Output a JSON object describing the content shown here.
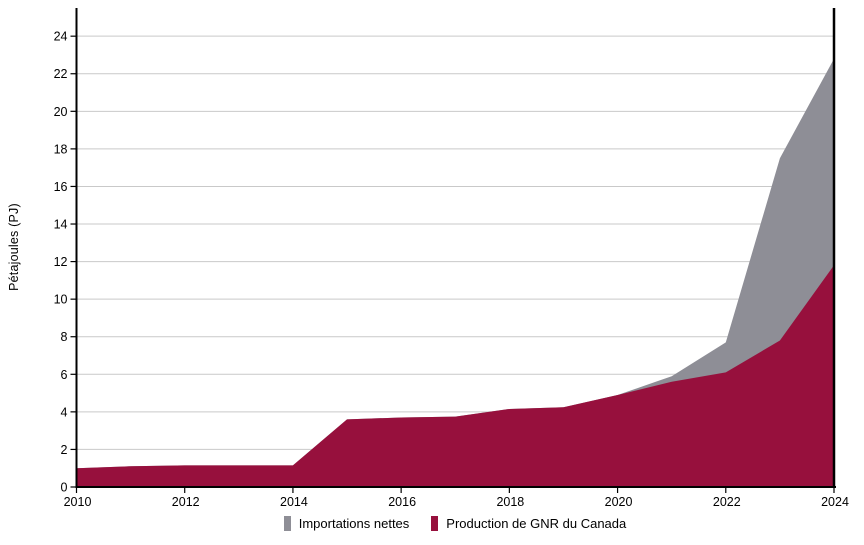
{
  "chart_data": {
    "type": "area",
    "stacked": true,
    "title": "",
    "xlabel": "",
    "ylabel": "Pétajoules (PJ)",
    "x": [
      2010,
      2011,
      2012,
      2013,
      2014,
      2015,
      2016,
      2017,
      2018,
      2019,
      2020,
      2021,
      2022,
      2023,
      2024
    ],
    "series": [
      {
        "name": "Production de GNR du Canada",
        "color": "#97103D",
        "values": [
          1.0,
          1.1,
          1.15,
          1.15,
          1.15,
          3.6,
          3.7,
          3.75,
          4.15,
          4.25,
          4.9,
          5.6,
          6.1,
          7.8,
          11.8
        ]
      },
      {
        "name": "Importations nettes",
        "color": "#8E8E96",
        "values": [
          0,
          0,
          0,
          0,
          0,
          0,
          0,
          0,
          0,
          0,
          0,
          0.3,
          1.6,
          9.7,
          11.0
        ]
      }
    ],
    "ylim": [
      0,
      25.5
    ],
    "yticks": [
      0,
      2,
      4,
      6,
      8,
      10,
      12,
      14,
      16,
      18,
      20,
      22,
      24
    ],
    "xticks": [
      2010,
      2012,
      2014,
      2016,
      2018,
      2020,
      2022,
      2024
    ],
    "grid": "horizontal",
    "gridline_color": "#C9C9C9",
    "axis_color": "#000000",
    "legend_position": "bottom-center"
  },
  "axes": {
    "y_title": "Pétajoules (PJ)"
  },
  "legend": {
    "items": [
      {
        "label": "Importations nettes",
        "color": "#8E8E96"
      },
      {
        "label": "Production de GNR du Canada",
        "color": "#97103D"
      }
    ]
  }
}
